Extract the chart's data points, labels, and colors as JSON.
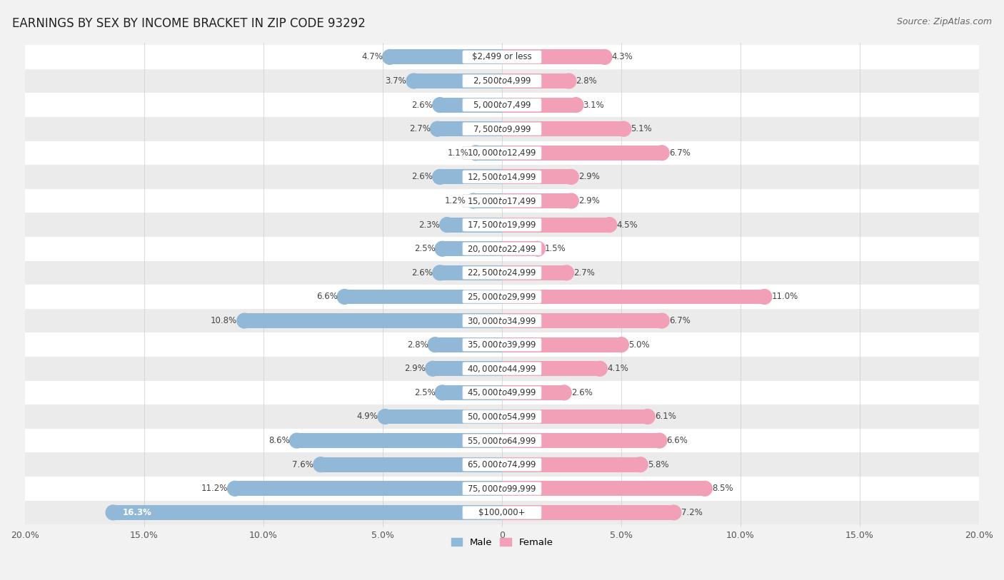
{
  "title": "EARNINGS BY SEX BY INCOME BRACKET IN ZIP CODE 93292",
  "source": "Source: ZipAtlas.com",
  "categories": [
    "$2,499 or less",
    "$2,500 to $4,999",
    "$5,000 to $7,499",
    "$7,500 to $9,999",
    "$10,000 to $12,499",
    "$12,500 to $14,999",
    "$15,000 to $17,499",
    "$17,500 to $19,999",
    "$20,000 to $22,499",
    "$22,500 to $24,999",
    "$25,000 to $29,999",
    "$30,000 to $34,999",
    "$35,000 to $39,999",
    "$40,000 to $44,999",
    "$45,000 to $49,999",
    "$50,000 to $54,999",
    "$55,000 to $64,999",
    "$65,000 to $74,999",
    "$75,000 to $99,999",
    "$100,000+"
  ],
  "male": [
    4.7,
    3.7,
    2.6,
    2.7,
    1.1,
    2.6,
    1.2,
    2.3,
    2.5,
    2.6,
    6.6,
    10.8,
    2.8,
    2.9,
    2.5,
    4.9,
    8.6,
    7.6,
    11.2,
    16.3
  ],
  "female": [
    4.3,
    2.8,
    3.1,
    5.1,
    6.7,
    2.9,
    2.9,
    4.5,
    1.5,
    2.7,
    11.0,
    6.7,
    5.0,
    4.1,
    2.6,
    6.1,
    6.6,
    5.8,
    8.5,
    7.2
  ],
  "male_color": "#92b8d8",
  "female_color": "#f2a0b8",
  "male_label": "Male",
  "female_label": "Female",
  "xlim": 20.0,
  "row_colors": [
    "#f5f5f5",
    "#e8e8e8"
  ],
  "bar_background": "#ffffff",
  "title_fontsize": 12,
  "source_fontsize": 9,
  "label_fontsize": 8.5,
  "cat_fontsize": 8.5,
  "axis_fontsize": 9
}
